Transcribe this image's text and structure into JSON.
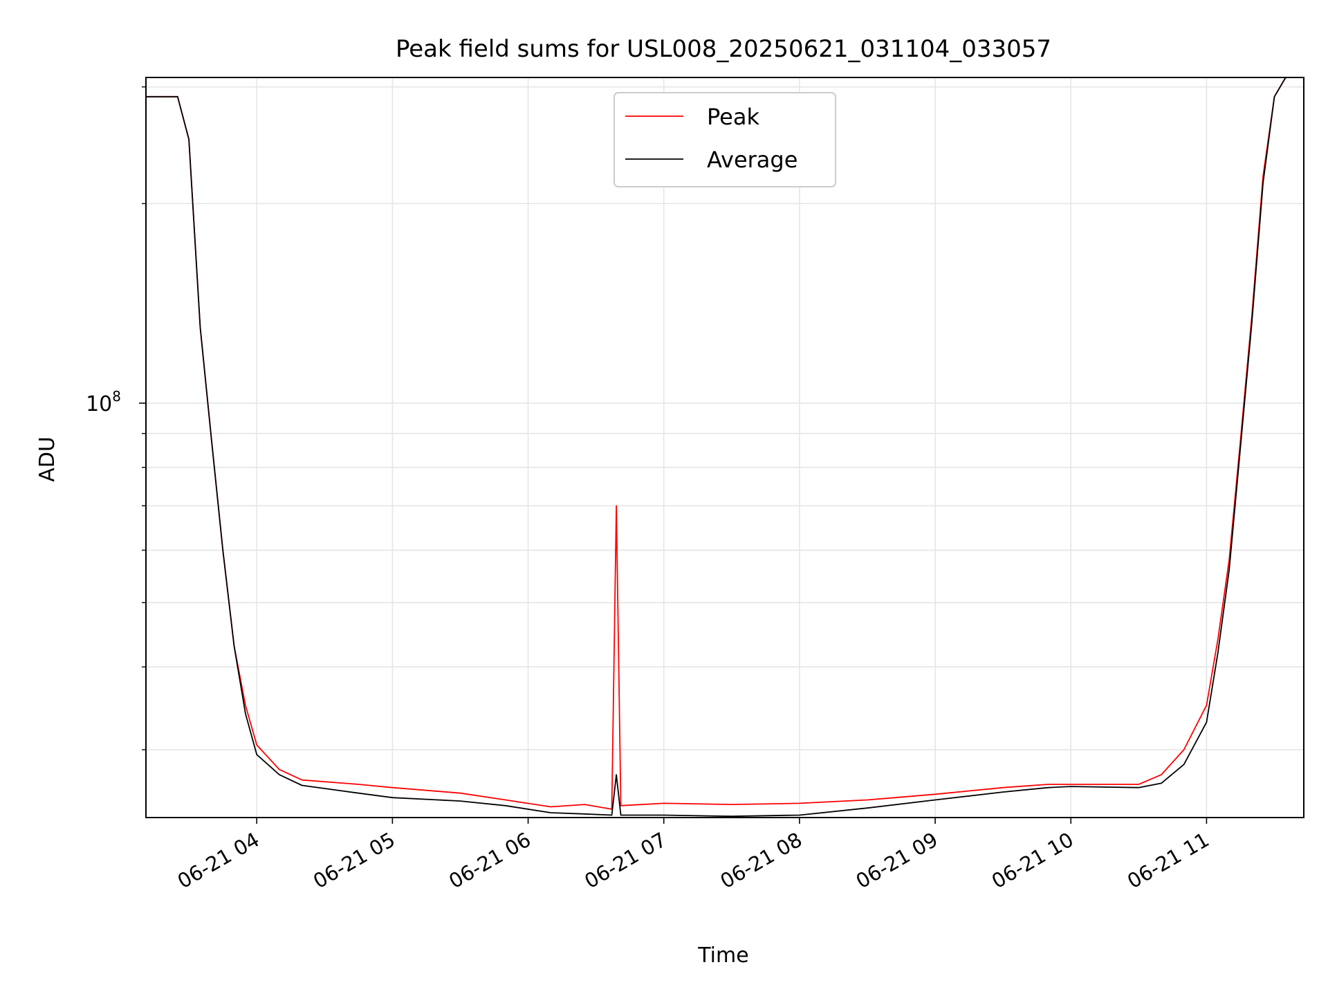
{
  "chart_data": {
    "type": "line",
    "title": "Peak field sums for USL008_20250621_031104_033057",
    "xlabel": "Time",
    "ylabel": "ADU",
    "yscale": "log",
    "grid": true,
    "legend_position": "upper center",
    "x_range": [
      "2025-06-21 03:11",
      "2025-06-21 11:43"
    ],
    "ylim": [
      23700000,
      310000000
    ],
    "x_ticks": [
      "06-21 04",
      "06-21 05",
      "06-21 06",
      "06-21 07",
      "06-21 08",
      "06-21 09",
      "06-21 10",
      "06-21 11"
    ],
    "y_ticks": [
      {
        "base": "10",
        "exp": "8",
        "value": 100000000
      }
    ],
    "series": [
      {
        "name": "Peak",
        "color": "#ff0000",
        "x": [
          "2025-06-21 03:11",
          "2025-06-21 03:20",
          "2025-06-21 03:25",
          "2025-06-21 03:30",
          "2025-06-21 03:35",
          "2025-06-21 03:40",
          "2025-06-21 03:45",
          "2025-06-21 03:50",
          "2025-06-21 03:55",
          "2025-06-21 04:00",
          "2025-06-21 04:10",
          "2025-06-21 04:20",
          "2025-06-21 04:45",
          "2025-06-21 05:00",
          "2025-06-21 05:30",
          "2025-06-21 05:50",
          "2025-06-21 06:10",
          "2025-06-21 06:25",
          "2025-06-21 06:37",
          "2025-06-21 06:39",
          "2025-06-21 06:41",
          "2025-06-21 07:00",
          "2025-06-21 07:30",
          "2025-06-21 08:00",
          "2025-06-21 08:30",
          "2025-06-21 09:00",
          "2025-06-21 09:30",
          "2025-06-21 09:50",
          "2025-06-21 10:00",
          "2025-06-21 10:30",
          "2025-06-21 10:40",
          "2025-06-21 10:50",
          "2025-06-21 11:00",
          "2025-06-21 11:05",
          "2025-06-21 11:10",
          "2025-06-21 11:15",
          "2025-06-21 11:20",
          "2025-06-21 11:25",
          "2025-06-21 11:30",
          "2025-06-21 11:35",
          "2025-06-21 11:43"
        ],
        "y": [
          290000000,
          290000000,
          290000000,
          250000000,
          130000000,
          88000000,
          60000000,
          43000000,
          35000000,
          30500000,
          28000000,
          27000000,
          26600000,
          26300000,
          25800000,
          25200000,
          24600000,
          24800000,
          24400000,
          70000000,
          24700000,
          24900000,
          24800000,
          24900000,
          25200000,
          25700000,
          26300000,
          26600000,
          26600000,
          26600000,
          27500000,
          30000000,
          35000000,
          44000000,
          58000000,
          88000000,
          135000000,
          220000000,
          290000000,
          310000000,
          310000000
        ]
      },
      {
        "name": "Average",
        "color": "#000000",
        "x": [
          "2025-06-21 03:11",
          "2025-06-21 03:20",
          "2025-06-21 03:25",
          "2025-06-21 03:30",
          "2025-06-21 03:35",
          "2025-06-21 03:40",
          "2025-06-21 03:45",
          "2025-06-21 03:50",
          "2025-06-21 03:55",
          "2025-06-21 04:00",
          "2025-06-21 04:10",
          "2025-06-21 04:20",
          "2025-06-21 04:45",
          "2025-06-21 05:00",
          "2025-06-21 05:30",
          "2025-06-21 05:50",
          "2025-06-21 06:10",
          "2025-06-21 06:25",
          "2025-06-21 06:37",
          "2025-06-21 06:39",
          "2025-06-21 06:41",
          "2025-06-21 07:00",
          "2025-06-21 07:30",
          "2025-06-21 08:00",
          "2025-06-21 08:30",
          "2025-06-21 09:00",
          "2025-06-21 09:30",
          "2025-06-21 09:50",
          "2025-06-21 10:00",
          "2025-06-21 10:30",
          "2025-06-21 10:40",
          "2025-06-21 10:50",
          "2025-06-21 11:00",
          "2025-06-21 11:05",
          "2025-06-21 11:10",
          "2025-06-21 11:15",
          "2025-06-21 11:20",
          "2025-06-21 11:25",
          "2025-06-21 11:30",
          "2025-06-21 11:35",
          "2025-06-21 11:43"
        ],
        "y": [
          290000000,
          290000000,
          290000000,
          250000000,
          130000000,
          88000000,
          60000000,
          43000000,
          34000000,
          29500000,
          27500000,
          26500000,
          25800000,
          25400000,
          25100000,
          24700000,
          24100000,
          24000000,
          23900000,
          27500000,
          23900000,
          23900000,
          23800000,
          23900000,
          24500000,
          25200000,
          25900000,
          26300000,
          26400000,
          26300000,
          26700000,
          28500000,
          33000000,
          42000000,
          56000000,
          86000000,
          132000000,
          215000000,
          290000000,
          310000000,
          310000000
        ]
      }
    ]
  }
}
